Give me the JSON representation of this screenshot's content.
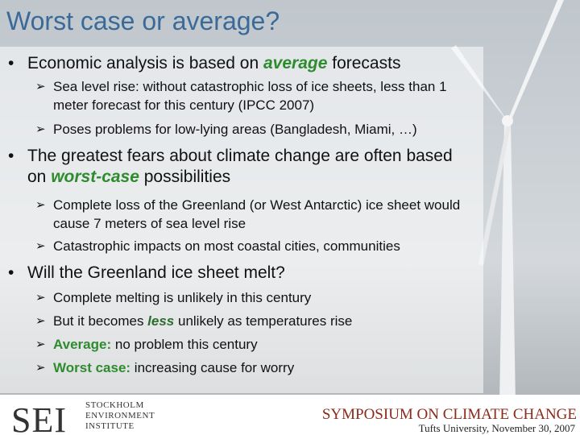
{
  "title": "Worst case or average?",
  "bullets": [
    {
      "parts": [
        {
          "text": "Economic analysis is based on "
        },
        {
          "text": "average",
          "italic": true,
          "bold": true,
          "color": "#2e8b2e"
        },
        {
          "text": " forecasts"
        }
      ],
      "subs": [
        {
          "parts": [
            {
              "text": "Sea level rise: without catastrophic loss of ice sheets, less than 1 meter forecast for this century (IPCC 2007)"
            }
          ]
        },
        {
          "parts": [
            {
              "text": "Poses problems for low-lying areas (Bangladesh, Miami, …)"
            }
          ]
        }
      ]
    },
    {
      "parts": [
        {
          "text": "The greatest fears about climate change are often based on "
        },
        {
          "text": "worst-case",
          "italic": true,
          "bold": true,
          "color": "#2e8b2e"
        },
        {
          "text": " possibilities"
        }
      ],
      "subs": [
        {
          "parts": [
            {
              "text": "Complete loss of the Greenland (or West Antarctic) ice sheet would cause 7 meters of sea level rise"
            }
          ]
        },
        {
          "parts": [
            {
              "text": "Catastrophic impacts on most coastal cities, communities"
            }
          ]
        }
      ]
    },
    {
      "parts": [
        {
          "text": "Will the Greenland ice sheet melt?"
        }
      ],
      "subs": [
        {
          "parts": [
            {
              "text": "Complete melting is unlikely in this century"
            }
          ]
        },
        {
          "parts": [
            {
              "text": "But it becomes "
            },
            {
              "text": "less",
              "italic": true,
              "bold": true,
              "color": "#2e6b2e"
            },
            {
              "text": " unlikely as temperatures rise"
            }
          ]
        },
        {
          "parts": [
            {
              "text": "Average:",
              "bold": true,
              "color": "#2e8b2e"
            },
            {
              "text": " no problem this century"
            }
          ]
        },
        {
          "parts": [
            {
              "text": "Worst case:",
              "bold": true,
              "color": "#2e8b2e"
            },
            {
              "text": " increasing cause for worry"
            }
          ]
        }
      ]
    }
  ],
  "footer": {
    "logo": "SEI",
    "institute": [
      "STOCKHOLM",
      "ENVIRONMENT",
      "INSTITUTE"
    ],
    "event": "SYMPOSIUM ON CLIMATE CHANGE",
    "venue": "Tufts University, November 30, 2007"
  }
}
